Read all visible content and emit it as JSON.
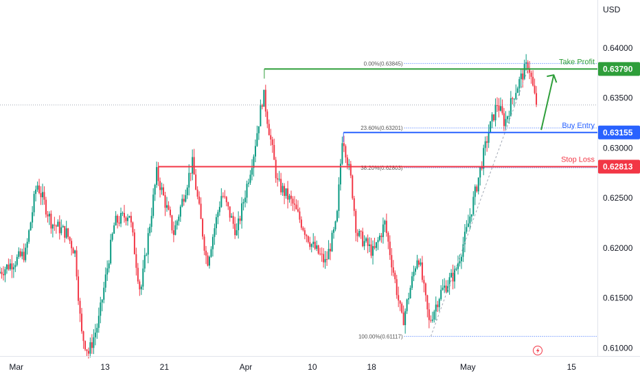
{
  "chart_data": {
    "type": "candlestick",
    "currency_label": "USD",
    "y_ticks": [
      "0.64000",
      "0.63500",
      "0.63000",
      "0.62500",
      "0.62000",
      "0.61500",
      "0.61000"
    ],
    "y_tick_values": [
      0.64,
      0.635,
      0.63,
      0.625,
      0.62,
      0.615,
      0.61
    ],
    "ylim": [
      0.6092,
      0.6448
    ],
    "x_ticks": [
      {
        "label": "Mar",
        "day": 0
      },
      {
        "label": "13",
        "day": 12
      },
      {
        "label": "21",
        "day": 20
      },
      {
        "label": "Apr",
        "day": 31
      },
      {
        "label": "10",
        "day": 40
      },
      {
        "label": "18",
        "day": 48
      },
      {
        "label": "May",
        "day": 61
      },
      {
        "label": "15",
        "day": 75
      }
    ],
    "xlim": [
      -2.2,
      78.5
    ],
    "current_price_level": 0.6343,
    "levels": [
      {
        "name": "Take Profit",
        "value": 0.6379,
        "badge": "0.63790",
        "color": "#2e9e3a",
        "start_day": 33.5
      },
      {
        "name": "Buy Entry",
        "value": 0.63155,
        "badge": "0.63155",
        "color": "#2962ff",
        "start_day": 44.2
      },
      {
        "name": "Stop Loss",
        "value": 0.62813,
        "badge": "0.62813",
        "color": "#f23645",
        "start_day": 19.2
      }
    ],
    "fibonacci": {
      "start_day": 52.4,
      "levels": [
        {
          "label": "0.00%(0.63845)",
          "value": 0.63845
        },
        {
          "label": "23.60%(0.63201)",
          "value": 0.63201
        },
        {
          "label": "38.20%(0.62803)",
          "value": 0.62803
        },
        {
          "label": "100.00%(0.61117)",
          "value": 0.61117
        }
      ]
    },
    "path_points": [
      [
        -2.2,
        0.6175
      ],
      [
        1.5,
        0.6195
      ],
      [
        3,
        0.6265
      ],
      [
        5,
        0.6225
      ],
      [
        7,
        0.6215
      ],
      [
        8.2,
        0.6195
      ],
      [
        9,
        0.6115
      ],
      [
        10,
        0.6095
      ],
      [
        11.3,
        0.6125
      ],
      [
        13.5,
        0.6225
      ],
      [
        15.5,
        0.6235
      ],
      [
        17,
        0.6155
      ],
      [
        19.2,
        0.6275
      ],
      [
        21.5,
        0.6215
      ],
      [
        24,
        0.6285
      ],
      [
        26,
        0.6185
      ],
      [
        28,
        0.6255
      ],
      [
        30,
        0.6215
      ],
      [
        32.3,
        0.6295
      ],
      [
        33.6,
        0.6355
      ],
      [
        35.5,
        0.6265
      ],
      [
        37.5,
        0.6245
      ],
      [
        40,
        0.6205
      ],
      [
        42,
        0.6185
      ],
      [
        43.5,
        0.6225
      ],
      [
        44.3,
        0.6315
      ],
      [
        45.5,
        0.6265
      ],
      [
        46.2,
        0.6215
      ],
      [
        48.5,
        0.6195
      ],
      [
        50,
        0.6225
      ],
      [
        52.4,
        0.6125
      ],
      [
        54.5,
        0.6195
      ],
      [
        56,
        0.6125
      ],
      [
        57.5,
        0.6155
      ],
      [
        59.5,
        0.6175
      ],
      [
        61,
        0.6215
      ],
      [
        62.5,
        0.6265
      ],
      [
        64,
        0.6315
      ],
      [
        65.2,
        0.6345
      ],
      [
        66.2,
        0.6325
      ],
      [
        67.5,
        0.6355
      ],
      [
        68.7,
        0.6375
      ],
      [
        69.4,
        0.6385
      ],
      [
        70.4,
        0.6345
      ]
    ]
  }
}
